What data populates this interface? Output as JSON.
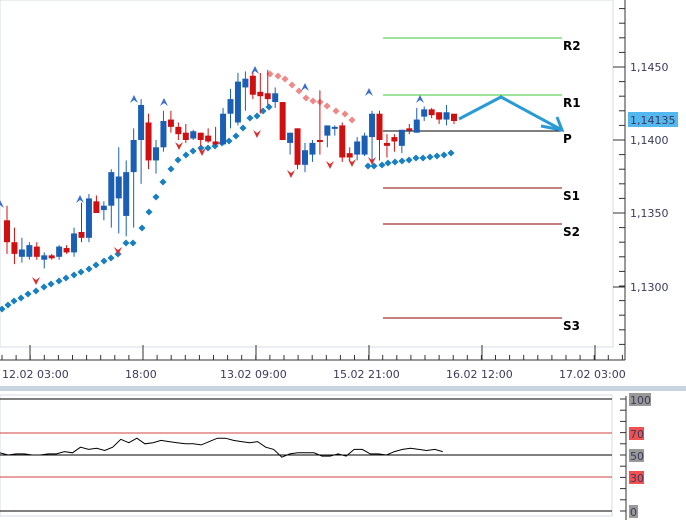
{
  "chart_data": [
    {
      "type": "candlestick",
      "title": "",
      "instrument_price_current": "1,14135",
      "y_axis": {
        "ticks": [
          "1,1450",
          "1,1400",
          "1,1350",
          "1,1300"
        ],
        "tick_values": [
          1.145,
          1.14,
          1.135,
          1.13
        ],
        "range": [
          1.126,
          1.1495
        ]
      },
      "x_axis": {
        "ticks": [
          "12.02 03:00",
          "18:00",
          "13.02 09:00",
          "15.02 21:00",
          "16.02 12:00",
          "17.02 03:00"
        ]
      },
      "pivot_levels": [
        {
          "name": "R2",
          "value": 1.1469,
          "color": "#3cc43c"
        },
        {
          "name": "R1",
          "value": 1.143,
          "color": "#3cc43c"
        },
        {
          "name": "P",
          "value": 1.1405,
          "color": "#000000"
        },
        {
          "name": "S1",
          "value": 1.1368,
          "color": "#8b0000"
        },
        {
          "name": "S2",
          "value": 1.1343,
          "color": "#8b0000"
        },
        {
          "name": "S3",
          "value": 1.1279,
          "color": "#8b0000"
        }
      ],
      "candles_approx": [
        {
          "o": 1.1345,
          "h": 1.1355,
          "l": 1.1322,
          "c": 1.133,
          "dir": "down"
        },
        {
          "o": 1.1322,
          "h": 1.134,
          "l": 1.1315,
          "c": 1.133,
          "dir": "down"
        },
        {
          "o": 1.1325,
          "h": 1.1333,
          "l": 1.1316,
          "c": 1.132,
          "dir": "up"
        },
        {
          "o": 1.132,
          "h": 1.133,
          "l": 1.1318,
          "c": 1.1328,
          "dir": "up"
        },
        {
          "o": 1.1327,
          "h": 1.133,
          "l": 1.1318,
          "c": 1.132,
          "dir": "down"
        },
        {
          "o": 1.1318,
          "h": 1.1323,
          "l": 1.1312,
          "c": 1.1321,
          "dir": "up"
        },
        {
          "o": 1.1321,
          "h": 1.1322,
          "l": 1.1318,
          "c": 1.1319,
          "dir": "down"
        },
        {
          "o": 1.132,
          "h": 1.1328,
          "l": 1.1318,
          "c": 1.1327,
          "dir": "up"
        },
        {
          "o": 1.1326,
          "h": 1.1328,
          "l": 1.1322,
          "c": 1.1323,
          "dir": "down"
        },
        {
          "o": 1.1323,
          "h": 1.134,
          "l": 1.132,
          "c": 1.1336,
          "dir": "up"
        },
        {
          "o": 1.1337,
          "h": 1.1357,
          "l": 1.133,
          "c": 1.1333,
          "dir": "down"
        },
        {
          "o": 1.1333,
          "h": 1.1363,
          "l": 1.133,
          "c": 1.136,
          "dir": "up"
        },
        {
          "o": 1.1358,
          "h": 1.1362,
          "l": 1.135,
          "c": 1.135,
          "dir": "down"
        },
        {
          "o": 1.1352,
          "h": 1.1358,
          "l": 1.1345,
          "c": 1.1355,
          "dir": "up"
        },
        {
          "o": 1.1355,
          "h": 1.138,
          "l": 1.134,
          "c": 1.1378,
          "dir": "up"
        },
        {
          "o": 1.1375,
          "h": 1.1395,
          "l": 1.1336,
          "c": 1.136,
          "dir": "up"
        },
        {
          "o": 1.1348,
          "h": 1.1386,
          "l": 1.1334,
          "c": 1.1378,
          "dir": "up"
        },
        {
          "o": 1.1378,
          "h": 1.1408,
          "l": 1.134,
          "c": 1.14,
          "dir": "up"
        },
        {
          "o": 1.14,
          "h": 1.1428,
          "l": 1.137,
          "c": 1.1424,
          "dir": "up"
        },
        {
          "o": 1.1412,
          "h": 1.1418,
          "l": 1.138,
          "c": 1.1386,
          "dir": "down"
        },
        {
          "o": 1.1386,
          "h": 1.14,
          "l": 1.1377,
          "c": 1.1395,
          "dir": "up"
        },
        {
          "o": 1.1395,
          "h": 1.142,
          "l": 1.1392,
          "c": 1.1413,
          "dir": "up"
        },
        {
          "o": 1.1414,
          "h": 1.142,
          "l": 1.1405,
          "c": 1.1409,
          "dir": "down"
        },
        {
          "o": 1.1409,
          "h": 1.1412,
          "l": 1.14,
          "c": 1.1404,
          "dir": "down"
        },
        {
          "o": 1.1405,
          "h": 1.1411,
          "l": 1.1398,
          "c": 1.14,
          "dir": "down"
        },
        {
          "o": 1.1401,
          "h": 1.1407,
          "l": 1.14,
          "c": 1.1406,
          "dir": "up"
        },
        {
          "o": 1.1405,
          "h": 1.1405,
          "l": 1.1396,
          "c": 1.14,
          "dir": "down"
        },
        {
          "o": 1.1403,
          "h": 1.1408,
          "l": 1.1398,
          "c": 1.1399,
          "dir": "down"
        },
        {
          "o": 1.1399,
          "h": 1.1409,
          "l": 1.1396,
          "c": 1.1397,
          "dir": "down"
        },
        {
          "o": 1.1397,
          "h": 1.1422,
          "l": 1.1397,
          "c": 1.1418,
          "dir": "up"
        },
        {
          "o": 1.1418,
          "h": 1.1435,
          "l": 1.1408,
          "c": 1.1428,
          "dir": "up"
        },
        {
          "o": 1.144,
          "h": 1.1446,
          "l": 1.141,
          "c": 1.1412,
          "dir": "up"
        },
        {
          "o": 1.1442,
          "h": 1.1447,
          "l": 1.142,
          "c": 1.1436,
          "dir": "up"
        },
        {
          "o": 1.1444,
          "h": 1.1447,
          "l": 1.1428,
          "c": 1.1431,
          "dir": "down"
        },
        {
          "o": 1.1433,
          "h": 1.1446,
          "l": 1.1418,
          "c": 1.143,
          "dir": "down"
        },
        {
          "o": 1.1432,
          "h": 1.1448,
          "l": 1.1424,
          "c": 1.1428,
          "dir": "down"
        },
        {
          "o": 1.1426,
          "h": 1.1436,
          "l": 1.1422,
          "c": 1.1432,
          "dir": "up"
        },
        {
          "o": 1.1426,
          "h": 1.1426,
          "l": 1.14,
          "c": 1.14,
          "dir": "down"
        },
        {
          "o": 1.1398,
          "h": 1.1405,
          "l": 1.139,
          "c": 1.1405,
          "dir": "up"
        },
        {
          "o": 1.1408,
          "h": 1.1408,
          "l": 1.138,
          "c": 1.1383,
          "dir": "down"
        },
        {
          "o": 1.1383,
          "h": 1.1398,
          "l": 1.1378,
          "c": 1.1393,
          "dir": "up"
        },
        {
          "o": 1.139,
          "h": 1.14,
          "l": 1.1385,
          "c": 1.1398,
          "dir": "up"
        },
        {
          "o": 1.14,
          "h": 1.1434,
          "l": 1.139,
          "c": 1.14,
          "dir": "down"
        },
        {
          "o": 1.1403,
          "h": 1.1408,
          "l": 1.1395,
          "c": 1.141,
          "dir": "up"
        },
        {
          "o": 1.1409,
          "h": 1.141,
          "l": 1.1403,
          "c": 1.1409,
          "dir": "up"
        },
        {
          "o": 1.141,
          "h": 1.1412,
          "l": 1.1385,
          "c": 1.1388,
          "dir": "down"
        },
        {
          "o": 1.1388,
          "h": 1.1395,
          "l": 1.1386,
          "c": 1.1391,
          "dir": "down"
        },
        {
          "o": 1.139,
          "h": 1.1402,
          "l": 1.1386,
          "c": 1.1399,
          "dir": "up"
        },
        {
          "o": 1.139,
          "h": 1.1405,
          "l": 1.1389,
          "c": 1.1403,
          "dir": "up"
        },
        {
          "o": 1.1402,
          "h": 1.142,
          "l": 1.1385,
          "c": 1.1418,
          "dir": "up"
        },
        {
          "o": 1.1418,
          "h": 1.142,
          "l": 1.1386,
          "c": 1.14,
          "dir": "down"
        },
        {
          "o": 1.1398,
          "h": 1.1404,
          "l": 1.1388,
          "c": 1.1396,
          "dir": "down"
        },
        {
          "o": 1.1402,
          "h": 1.1404,
          "l": 1.1392,
          "c": 1.1399,
          "dir": "down"
        },
        {
          "o": 1.1396,
          "h": 1.1407,
          "l": 1.1391,
          "c": 1.1407,
          "dir": "up"
        },
        {
          "o": 1.1408,
          "h": 1.1411,
          "l": 1.1404,
          "c": 1.1408,
          "dir": "down"
        },
        {
          "o": 1.1405,
          "h": 1.1422,
          "l": 1.1405,
          "c": 1.1414,
          "dir": "up"
        },
        {
          "o": 1.1416,
          "h": 1.1423,
          "l": 1.1413,
          "c": 1.1421,
          "dir": "up"
        },
        {
          "o": 1.1421,
          "h": 1.1422,
          "l": 1.1415,
          "c": 1.1417,
          "dir": "down"
        },
        {
          "o": 1.1419,
          "h": 1.1419,
          "l": 1.1411,
          "c": 1.1414,
          "dir": "down"
        },
        {
          "o": 1.1414,
          "h": 1.1424,
          "l": 1.141,
          "c": 1.1419,
          "dir": "up"
        },
        {
          "o": 1.1418,
          "h": 1.1418,
          "l": 1.1411,
          "c": 1.1413,
          "dir": "down"
        }
      ],
      "annotations": [
        "up-fractal markers (blue arrows)",
        "down-fractal markers (red arrows)",
        "Parabolic SAR dots (blue below price, pink above price)",
        "forecast arrow from price up to R1 then down to P"
      ]
    },
    {
      "type": "line",
      "title": "RSI",
      "y_axis": {
        "ticks": [
          "100",
          "70",
          "50",
          "30",
          "0"
        ],
        "range": [
          0,
          100
        ]
      },
      "levels": [
        70,
        50,
        30
      ],
      "values_approx": [
        52,
        50,
        51,
        51,
        50,
        50,
        51,
        51,
        53,
        52,
        57,
        55,
        56,
        54,
        57,
        64,
        61,
        65,
        60,
        61,
        63,
        62,
        61,
        60,
        60,
        59,
        62,
        65,
        65,
        63,
        62,
        61,
        62,
        57,
        55,
        48,
        51,
        52,
        52,
        52,
        49,
        49,
        51,
        49,
        55,
        55,
        51,
        51,
        50,
        53,
        55,
        56,
        55,
        54,
        55,
        53
      ]
    }
  ],
  "price_axis": {
    "labels": [
      "1,1450",
      "1,1400",
      "1,1350",
      "1,1300"
    ],
    "current_price": "1,14135",
    "current_price_bg": "#54b8f0"
  },
  "time_axis": {
    "labels": [
      "12.02 03:00",
      "18:00",
      "13.02 09:00",
      "15.02 21:00",
      "16.02 12:00",
      "17.02 03:00"
    ]
  },
  "pivots": {
    "r2": "R2",
    "r1": "R1",
    "p": "P",
    "s1": "S1",
    "s2": "S2",
    "s3": "S3"
  },
  "rsi_axis": {
    "labels": {
      "l100": "100",
      "l70": "70",
      "l50": "50",
      "l30": "30",
      "l0": "0"
    }
  },
  "colors": {
    "bull": "#1a5fb4",
    "bear": "#d01010",
    "sar_below": "#1a7fbf",
    "sar_above": "#f08888",
    "resistance": "#3cc43c",
    "support": "#8b0000",
    "forecast_arrow": "#2a9ad6"
  }
}
